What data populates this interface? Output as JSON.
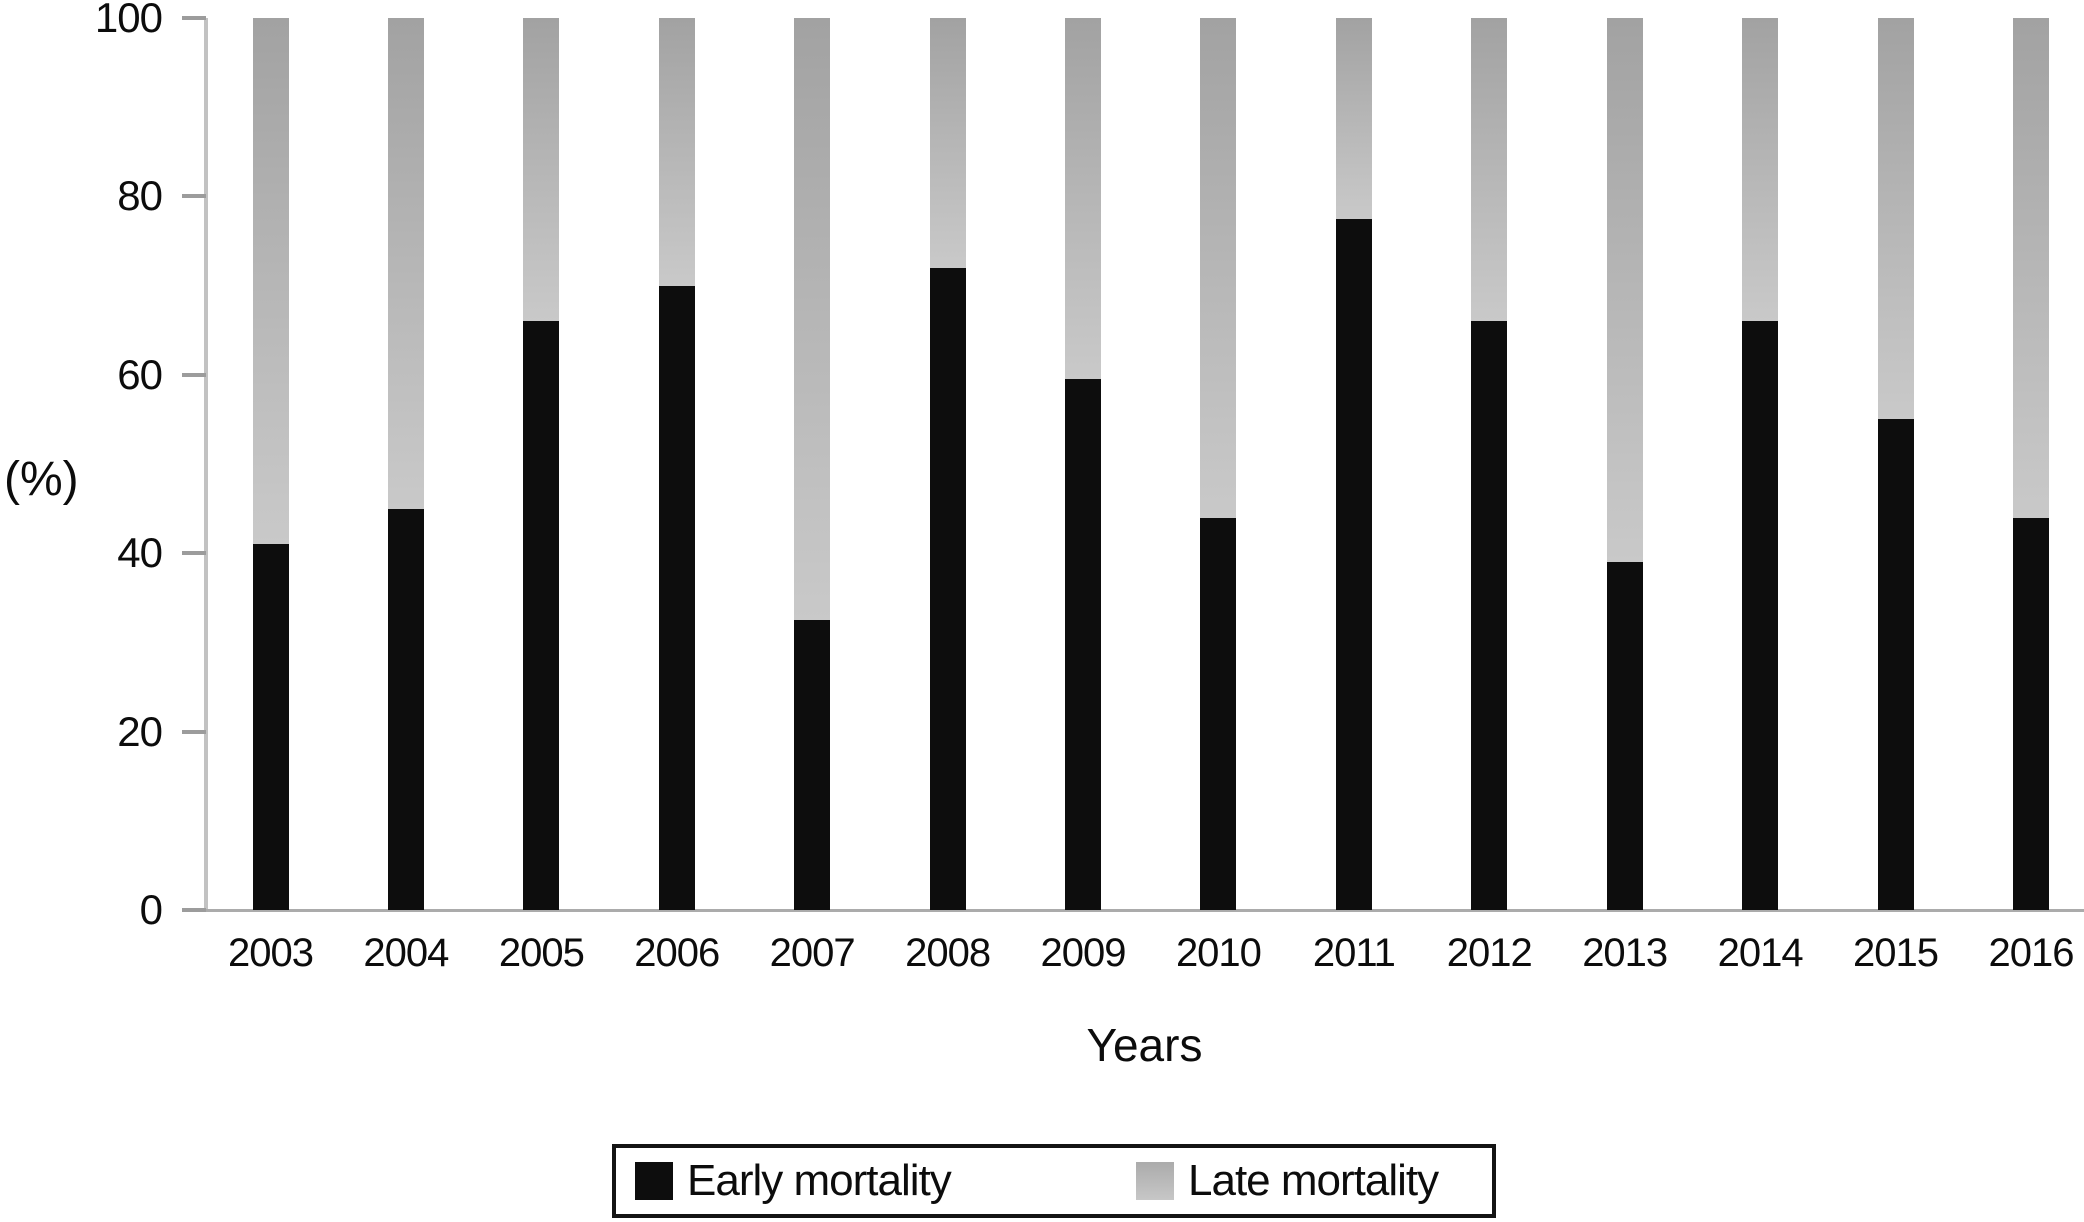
{
  "chart_data": {
    "type": "bar",
    "stacked": true,
    "categories": [
      "2003",
      "2004",
      "2005",
      "2006",
      "2007",
      "2008",
      "2009",
      "2010",
      "2011",
      "2012",
      "2013",
      "2014",
      "2015",
      "2016"
    ],
    "series": [
      {
        "name": "Early mortality",
        "color": "#0d0d0d",
        "values": [
          41,
          45,
          66,
          70,
          32.5,
          72,
          59.5,
          44,
          77.5,
          66,
          39,
          66,
          55,
          44
        ]
      },
      {
        "name": "Late mortality",
        "color": "#b5b5b5",
        "values": [
          59,
          55,
          34,
          30,
          67.5,
          28,
          40.5,
          56,
          22.5,
          34,
          61,
          34,
          45,
          56
        ]
      }
    ],
    "title": "",
    "xlabel": "Years",
    "ylabel": "(%)",
    "ylim": [
      0,
      100
    ],
    "y_ticks": [
      0,
      20,
      40,
      60,
      80,
      100
    ],
    "grid": false,
    "legend_position": "bottom",
    "bar_total_percent": 100
  },
  "legend": {
    "items": [
      {
        "label": "Early mortality",
        "swatch_color": "#0d0d0d"
      },
      {
        "label": "Late mortality",
        "swatch_color": "#b5b5b5"
      }
    ]
  },
  "colors": {
    "early_bar": "#0d0d0d",
    "late_bar_top": "#a2a2a2",
    "late_bar_bottom": "#c9c9c9",
    "axis_line": "#ababab",
    "tick": "#9c9c9c",
    "text": "#0c0c0c",
    "background": "#ffffff"
  }
}
